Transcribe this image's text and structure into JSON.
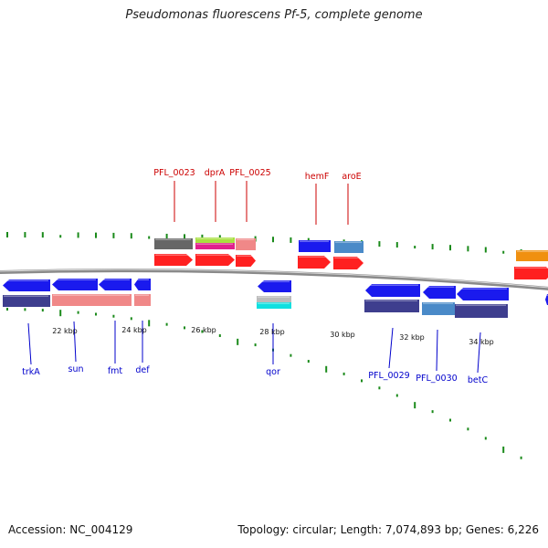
{
  "title": "Pseudomonas fluorescens Pf-5, complete genome",
  "footer": {
    "accession": "Accession: NC_004129",
    "summary": "Topology: circular; Length: 7,074,893 bp; Genes: 6,226"
  },
  "colors": {
    "backbone": "#8a8a8a",
    "tick": "#1a8a1a",
    "top_label": "#cc0000",
    "bottom_label": "#0000cc",
    "red": "#ff2020",
    "blue": "#1a1aee",
    "navy": "#3e3e8e",
    "pink": "#f08888",
    "gray": "#666666",
    "lime": "#a8e040",
    "magenta": "#e0208c",
    "steel": "#4a8ac8",
    "silver": "#bbbbbb",
    "cyan": "#10e0e0",
    "orange": "#f09010"
  },
  "scale": {
    "labels": [
      "22 kbp",
      "24 kbp",
      "26 kbp",
      "28 kbp",
      "30 kbp",
      "32 kbp",
      "34 kbp"
    ]
  },
  "top_genes": [
    "PFL_0023",
    "dprA",
    "PFL_0025",
    "hemF",
    "aroE"
  ],
  "bottom_genes": [
    "trkA",
    "sun",
    "fmt",
    "def",
    "qor",
    "PFL_0029",
    "PFL_0030",
    "betC"
  ]
}
